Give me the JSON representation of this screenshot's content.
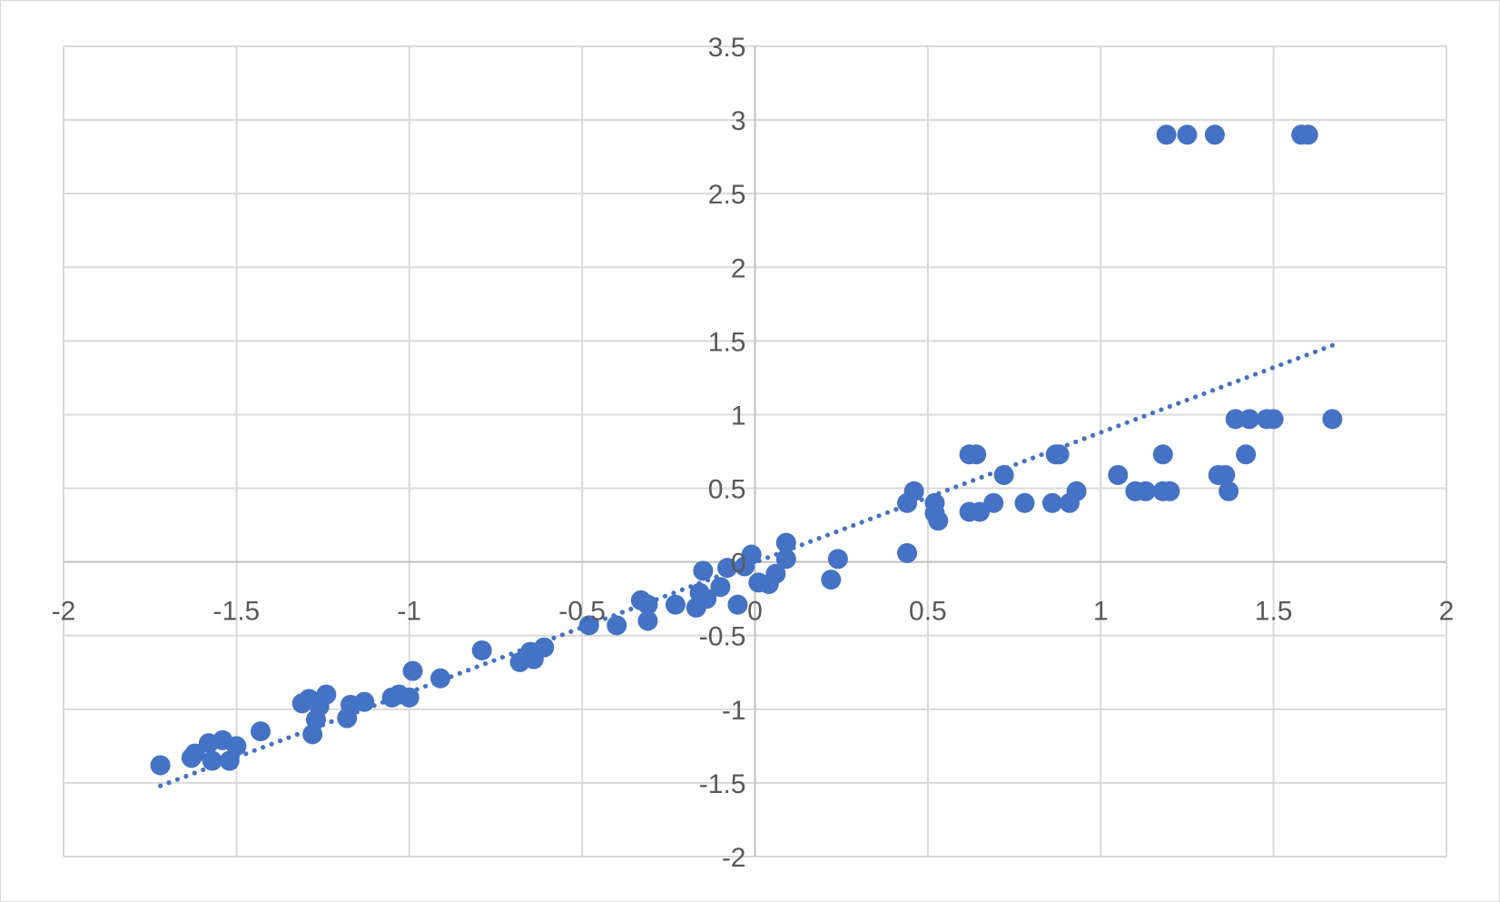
{
  "chart_data": {
    "type": "scatter",
    "title": "",
    "xlabel": "",
    "ylabel": "",
    "xlim": [
      -2,
      2
    ],
    "ylim": [
      -2,
      3.5
    ],
    "x_ticks": [
      -2,
      -1.5,
      -1,
      -0.5,
      0,
      0.5,
      1,
      1.5,
      2
    ],
    "y_ticks": [
      -2,
      -1.5,
      -1,
      -0.5,
      0,
      0.5,
      1,
      1.5,
      2,
      2.5,
      3,
      3.5
    ],
    "x_tick_labels": [
      "-2",
      "-1.5",
      "-1",
      "-0.5",
      "0",
      "0.5",
      "1",
      "1.5",
      "2"
    ],
    "y_tick_labels": [
      "-2",
      "-1.5",
      "-1",
      "-0.5",
      "0",
      "0.5",
      "1",
      "1.5",
      "2",
      "2.5",
      "3",
      "3.5"
    ],
    "grid": true,
    "legend": "none",
    "series_color": "#4472c4",
    "trendline": {
      "type": "linear",
      "style": "dotted",
      "x_start": -1.72,
      "y_start": -1.52,
      "x_end": 1.67,
      "y_end": 1.47
    },
    "points": [
      {
        "x": -1.72,
        "y": -1.38
      },
      {
        "x": -1.63,
        "y": -1.33
      },
      {
        "x": -1.62,
        "y": -1.3
      },
      {
        "x": -1.58,
        "y": -1.23
      },
      {
        "x": -1.57,
        "y": -1.35
      },
      {
        "x": -1.54,
        "y": -1.21
      },
      {
        "x": -1.52,
        "y": -1.35
      },
      {
        "x": -1.5,
        "y": -1.25
      },
      {
        "x": -1.43,
        "y": -1.15
      },
      {
        "x": -1.31,
        "y": -0.96
      },
      {
        "x": -1.29,
        "y": -0.93
      },
      {
        "x": -1.28,
        "y": -1.17
      },
      {
        "x": -1.27,
        "y": -1.07
      },
      {
        "x": -1.26,
        "y": -0.98
      },
      {
        "x": -1.24,
        "y": -0.9
      },
      {
        "x": -1.18,
        "y": -1.06
      },
      {
        "x": -1.17,
        "y": -0.97
      },
      {
        "x": -1.13,
        "y": -0.95
      },
      {
        "x": -1.05,
        "y": -0.92
      },
      {
        "x": -1.03,
        "y": -0.9
      },
      {
        "x": -1.0,
        "y": -0.92
      },
      {
        "x": -0.99,
        "y": -0.74
      },
      {
        "x": -0.91,
        "y": -0.79
      },
      {
        "x": -0.79,
        "y": -0.6
      },
      {
        "x": -0.68,
        "y": -0.68
      },
      {
        "x": -0.65,
        "y": -0.61
      },
      {
        "x": -0.64,
        "y": -0.66
      },
      {
        "x": -0.61,
        "y": -0.58
      },
      {
        "x": -0.48,
        "y": -0.43
      },
      {
        "x": -0.4,
        "y": -0.43
      },
      {
        "x": -0.33,
        "y": -0.26
      },
      {
        "x": -0.31,
        "y": -0.29
      },
      {
        "x": -0.31,
        "y": -0.4
      },
      {
        "x": -0.23,
        "y": -0.29
      },
      {
        "x": -0.17,
        "y": -0.31
      },
      {
        "x": -0.16,
        "y": -0.21
      },
      {
        "x": -0.14,
        "y": -0.25
      },
      {
        "x": -0.15,
        "y": -0.06
      },
      {
        "x": -0.1,
        "y": -0.17
      },
      {
        "x": -0.08,
        "y": -0.04
      },
      {
        "x": -0.05,
        "y": -0.29
      },
      {
        "x": -0.03,
        "y": -0.03
      },
      {
        "x": -0.01,
        "y": 0.05
      },
      {
        "x": 0.01,
        "y": -0.14
      },
      {
        "x": 0.04,
        "y": -0.15
      },
      {
        "x": 0.06,
        "y": -0.08
      },
      {
        "x": 0.09,
        "y": 0.02
      },
      {
        "x": 0.09,
        "y": 0.13
      },
      {
        "x": 0.22,
        "y": -0.12
      },
      {
        "x": 0.24,
        "y": 0.02
      },
      {
        "x": 0.44,
        "y": 0.06
      },
      {
        "x": 0.44,
        "y": 0.4
      },
      {
        "x": 0.46,
        "y": 0.48
      },
      {
        "x": 0.52,
        "y": 0.4
      },
      {
        "x": 0.52,
        "y": 0.33
      },
      {
        "x": 0.53,
        "y": 0.28
      },
      {
        "x": 0.62,
        "y": 0.73
      },
      {
        "x": 0.64,
        "y": 0.73
      },
      {
        "x": 0.62,
        "y": 0.34
      },
      {
        "x": 0.65,
        "y": 0.34
      },
      {
        "x": 0.69,
        "y": 0.4
      },
      {
        "x": 0.72,
        "y": 0.59
      },
      {
        "x": 0.78,
        "y": 0.4
      },
      {
        "x": 0.86,
        "y": 0.4
      },
      {
        "x": 0.87,
        "y": 0.73
      },
      {
        "x": 0.88,
        "y": 0.73
      },
      {
        "x": 0.91,
        "y": 0.4
      },
      {
        "x": 0.93,
        "y": 0.48
      },
      {
        "x": 1.05,
        "y": 0.59
      },
      {
        "x": 1.1,
        "y": 0.48
      },
      {
        "x": 1.13,
        "y": 0.48
      },
      {
        "x": 1.18,
        "y": 0.48
      },
      {
        "x": 1.2,
        "y": 0.48
      },
      {
        "x": 1.18,
        "y": 0.73
      },
      {
        "x": 1.34,
        "y": 0.59
      },
      {
        "x": 1.36,
        "y": 0.59
      },
      {
        "x": 1.37,
        "y": 0.48
      },
      {
        "x": 1.39,
        "y": 0.97
      },
      {
        "x": 1.43,
        "y": 0.97
      },
      {
        "x": 1.42,
        "y": 0.73
      },
      {
        "x": 1.48,
        "y": 0.97
      },
      {
        "x": 1.5,
        "y": 0.97
      },
      {
        "x": 1.67,
        "y": 0.97
      },
      {
        "x": 1.19,
        "y": 2.9
      },
      {
        "x": 1.25,
        "y": 2.9
      },
      {
        "x": 1.33,
        "y": 2.9
      },
      {
        "x": 1.58,
        "y": 2.9
      },
      {
        "x": 1.6,
        "y": 2.9
      }
    ]
  }
}
